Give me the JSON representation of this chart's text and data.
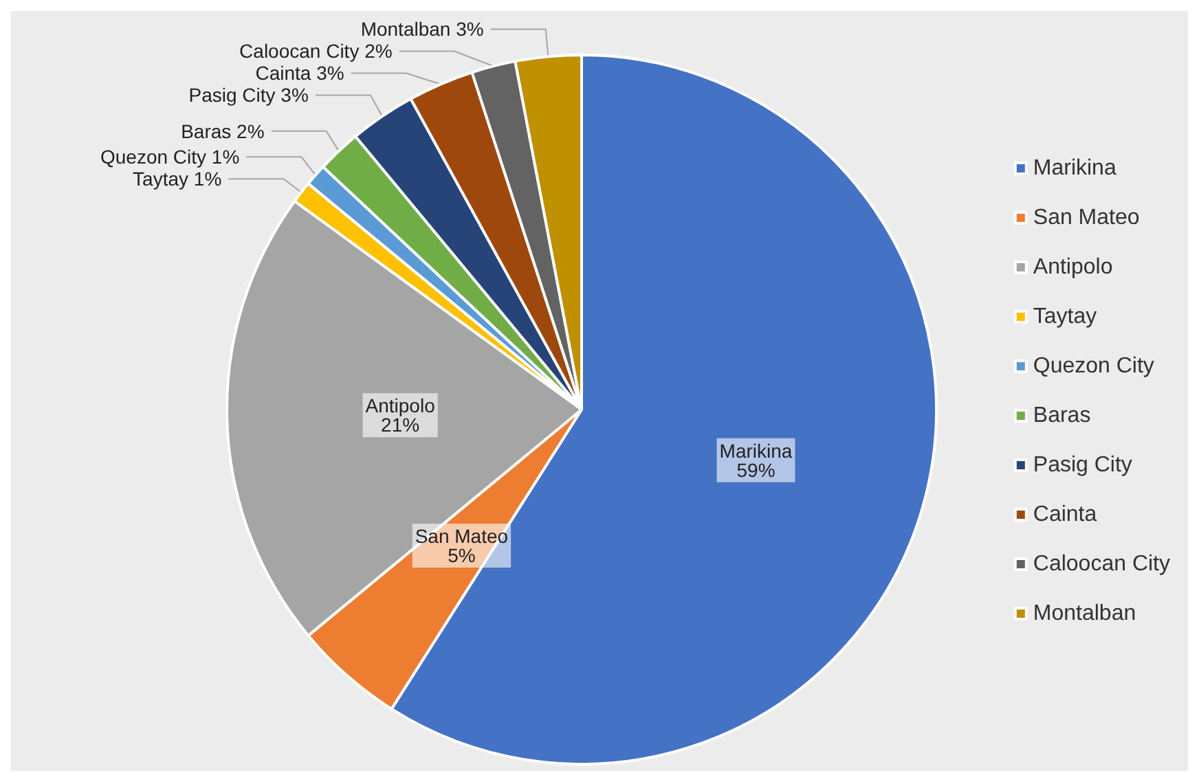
{
  "chart_data": {
    "type": "pie",
    "categories": [
      "Marikina",
      "San Mateo",
      "Antipolo",
      "Taytay",
      "Quezon City",
      "Baras",
      "Pasig City",
      "Cainta",
      "Caloocan City",
      "Montalban"
    ],
    "values": [
      59,
      5,
      21,
      1,
      1,
      2,
      3,
      3,
      2,
      3
    ],
    "colors": [
      "#4472c4",
      "#ed7d31",
      "#a5a5a5",
      "#ffc000",
      "#5b9bd5",
      "#70ad47",
      "#264478",
      "#9e480e",
      "#636363",
      "#bf9000"
    ],
    "value_labels": [
      "59%",
      "5%",
      "21%",
      "1%",
      "1%",
      "2%",
      "3%",
      "3%",
      "2%",
      "3%"
    ],
    "legend": "right"
  }
}
